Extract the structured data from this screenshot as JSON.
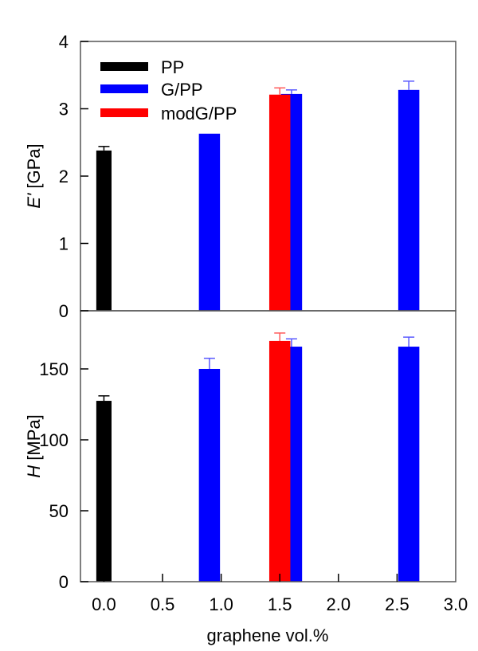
{
  "chart_data": [
    {
      "type": "bar",
      "panel": "top",
      "title": "",
      "xlabel": "graphene vol.%",
      "ylabel": "E' [GPa]",
      "ylabel_italic_part": "E'",
      "ylabel_unit": "[GPa]",
      "xlim": [
        -0.2,
        3.0
      ],
      "ylim": [
        0,
        4
      ],
      "yticks": [
        0,
        1,
        2,
        3,
        4
      ],
      "grid": false,
      "legend_position": "upper left",
      "series": [
        {
          "name": "PP",
          "color": "#000000",
          "points": [
            {
              "x": 0.0,
              "y": 2.38,
              "err": 0.06
            }
          ]
        },
        {
          "name": "G/PP",
          "color": "#0000ff",
          "points": [
            {
              "x": 0.9,
              "y": 2.63,
              "err": 0.0
            },
            {
              "x": 1.6,
              "y": 3.22,
              "err": 0.06
            },
            {
              "x": 2.6,
              "y": 3.28,
              "err": 0.13
            }
          ]
        },
        {
          "name": "modG/PP",
          "color": "#ff0000",
          "points": [
            {
              "x": 1.5,
              "y": 3.21,
              "err": 0.1
            }
          ]
        }
      ]
    },
    {
      "type": "bar",
      "panel": "bottom",
      "title": "",
      "xlabel": "graphene vol.%",
      "ylabel": "H [MPa]",
      "ylabel_italic_part": "H",
      "ylabel_unit": "[MPa]",
      "xlim": [
        -0.2,
        3.0
      ],
      "ylim": [
        0,
        191
      ],
      "yticks": [
        0,
        50,
        100,
        150
      ],
      "xticks": [
        "0.0",
        "0.5",
        "1.0",
        "1.5",
        "2.0",
        "2.5",
        "3.0"
      ],
      "grid": false,
      "series": [
        {
          "name": "PP",
          "color": "#000000",
          "points": [
            {
              "x": 0.0,
              "y": 127.5,
              "err": 3.5
            }
          ]
        },
        {
          "name": "G/PP",
          "color": "#0000ff",
          "points": [
            {
              "x": 0.9,
              "y": 150,
              "err": 7.5
            },
            {
              "x": 1.6,
              "y": 165.7,
              "err": 5.5
            },
            {
              "x": 2.6,
              "y": 165.7,
              "err": 6.7
            }
          ]
        },
        {
          "name": "modG/PP",
          "color": "#ff0000",
          "points": [
            {
              "x": 1.5,
              "y": 169.7,
              "err": 5.6
            }
          ]
        }
      ]
    }
  ],
  "labels": {
    "top_ylabel_italic": "E'",
    "top_ylabel_unit": " [GPa]",
    "bottom_ylabel_italic": "H",
    "bottom_ylabel_unit": " [MPa]",
    "xlabel": "graphene vol.%"
  },
  "legend": [
    {
      "label": "PP",
      "color": "#000000"
    },
    {
      "label": "G/PP",
      "color": "#0000ff"
    },
    {
      "label": "modG/PP",
      "color": "#ff0000"
    }
  ],
  "bar_widths": {
    "PP": 0.13,
    "G/PP": 0.18,
    "modG/PP": 0.18
  },
  "errorbar_colors": {
    "PP": "#000000",
    "G/PP": "#5a5aff",
    "modG/PP": "#ff5a5a"
  }
}
